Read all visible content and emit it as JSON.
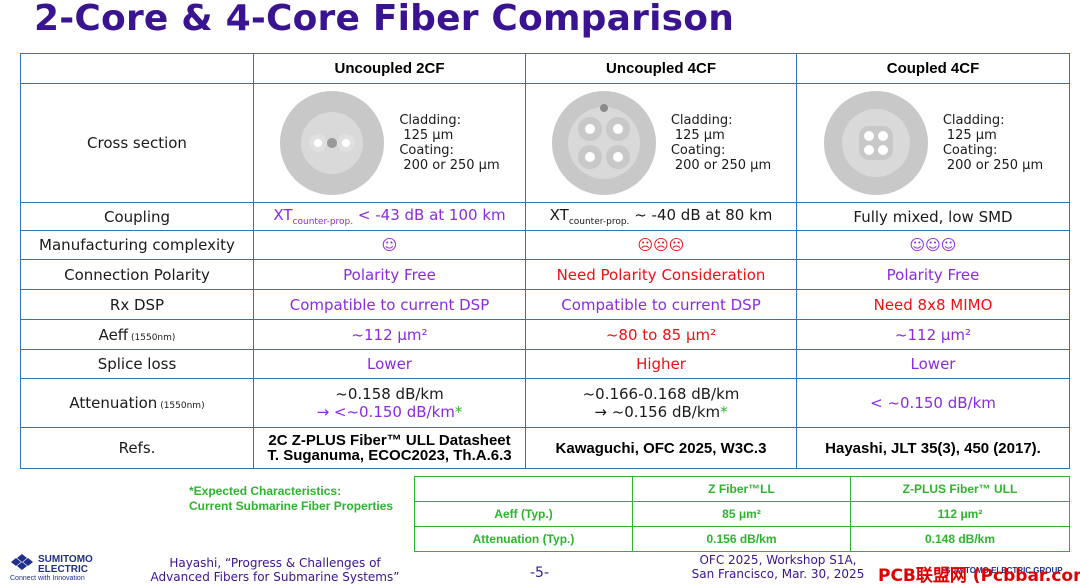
{
  "title": "2-Core & 4-Core Fiber Comparison",
  "header": [
    "Uncoupled 2CF",
    "Uncoupled 4CF",
    "Coupled 4CF"
  ],
  "cross_section": {
    "label": "Cross section",
    "cladding_label": "Cladding:",
    "cladding_value": "125 μm",
    "coating_label": "Coating:",
    "coating_value": "200 or 250 μm"
  },
  "rows": {
    "coupling": {
      "label": "Coupling",
      "c1_main": "XT",
      "c1_sub": "counter-prop.",
      "c1_rest": " < -43 dB at 100 km",
      "c2_main": "XT",
      "c2_sub": "counter-prop.",
      "c2_rest": " ~ -40 dB at 80 km",
      "c3": "Fully mixed, low SMD"
    },
    "manufacturing": {
      "label": "Manufacturing complexity",
      "c1": "☺",
      "c2": "☹☹☹",
      "c3": "☺☺☺"
    },
    "polarity": {
      "label": "Connection Polarity",
      "c1": "Polarity Free",
      "c2": "Need Polarity Consideration",
      "c3": "Polarity Free"
    },
    "rxdsp": {
      "label": "Rx DSP",
      "c1": "Compatible to current DSP",
      "c2": "Compatible to current DSP",
      "c3": "Need 8x8 MIMO"
    },
    "aeff": {
      "label": "Aeff",
      "label_small": " (1550nm)",
      "c1": "~112 μm²",
      "c2": "~80 to 85 μm²",
      "c3": "~112 μm²"
    },
    "splice": {
      "label": "Splice loss",
      "c1": "Lower",
      "c2": "Higher",
      "c3": "Lower"
    },
    "attenuation": {
      "label": "Attenuation",
      "label_small": " (1550nm)",
      "c1_line1": "~0.158 dB/km",
      "c1_line2": "→ <~0.150 dB/km",
      "c2_line1": "~0.166-0.168 dB/km",
      "c2_line2": "→ ~0.156 dB/km",
      "star": "*",
      "c3": "< ~0.150 dB/km"
    },
    "refs": {
      "label": "Refs.",
      "c1_line1": "2C Z-PLUS Fiber™ ULL Datasheet",
      "c1_line2": "T. Suganuma, ECOC2023, Th.A.6.3",
      "c2": "Kawaguchi, OFC 2025, W3C.3",
      "c3": "Hayashi, JLT 35(3), 450 (2017)."
    }
  },
  "expected": {
    "line1": "*Expected Characteristics:",
    "line2": "Current Submarine Fiber Properties"
  },
  "sub_table": {
    "headers": [
      "",
      "Z Fiber™LL",
      "Z-PLUS Fiber™ ULL"
    ],
    "rows": [
      [
        "Aeff (Typ.)",
        "85 μm²",
        "112 μm²"
      ],
      [
        "Attenuation (Typ.)",
        "0.156 dB/km",
        "0.148 dB/km"
      ]
    ]
  },
  "footer": {
    "logo_line1": "SUMITOMO",
    "logo_line2": "ELECTRIC",
    "logo_tag": "Connect with Innovation",
    "cite_line1": "Hayashi, “Progress & Challenges of",
    "cite_line2": "Advanced Fibers for Submarine Systems”",
    "page": "-5-",
    "conf_line1": "OFC 2025, Workshop S1A,",
    "conf_line2": "San Francisco, Mar. 30, 2025",
    "watermark": "PCB联盟网 (Pcbbar.com)",
    "watermark_under": "SUMITOMO ELECTRIC GROUP"
  },
  "colors": {
    "title": "#3a1490",
    "grid": "#2e75b6",
    "purple": "#8a2be2",
    "red": "#ee1111",
    "green": "#2db52d"
  }
}
